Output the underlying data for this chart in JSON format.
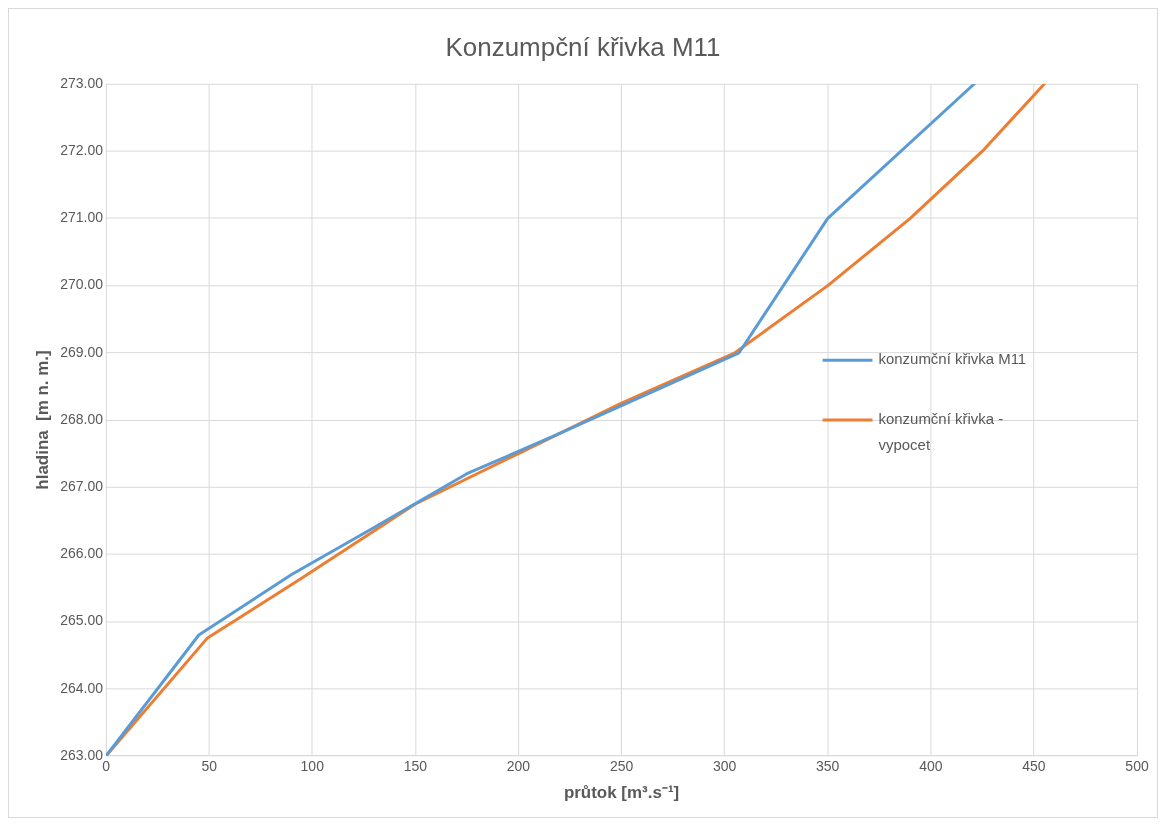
{
  "chart_data": {
    "type": "line",
    "title": "Konzumpční křivka M11",
    "xlabel": "průtok [m³.s⁻¹]",
    "ylabel": "hladina  [m n. m.]",
    "xlim": [
      0,
      500
    ],
    "xticks": [
      0,
      50,
      100,
      150,
      200,
      250,
      300,
      350,
      400,
      450,
      500
    ],
    "ylim": [
      263,
      273
    ],
    "yticks": [
      {
        "value": 263,
        "label": "263.00"
      },
      {
        "value": 264,
        "label": "264.00"
      },
      {
        "value": 265,
        "label": "265.00"
      },
      {
        "value": 266,
        "label": "266.00"
      },
      {
        "value": 267,
        "label": "267.00"
      },
      {
        "value": 268,
        "label": "268.00"
      },
      {
        "value": 269,
        "label": "269.00"
      },
      {
        "value": 270,
        "label": "270.00"
      },
      {
        "value": 271,
        "label": "271.00"
      },
      {
        "value": 272,
        "label": "272.00"
      },
      {
        "value": 273,
        "label": "273.00"
      }
    ],
    "grid": true,
    "legend": "right",
    "marker": "none",
    "line_style": "solid",
    "series": [
      {
        "name": "konzumční křivka M11",
        "color": "#5b9bd5",
        "x": [
          0,
          45,
          90,
          130,
          175,
          220,
          307,
          350,
          421
        ],
        "values": [
          263,
          264.8,
          265.7,
          266.4,
          267.2,
          267.8,
          269,
          271,
          273
        ]
      },
      {
        "name": "konzumční křivka - vypocet",
        "color": "#ed7d31",
        "x": [
          0,
          49,
          95,
          150,
          200,
          250,
          305,
          350,
          390,
          425,
          455
        ],
        "values": [
          263,
          264.75,
          265.65,
          266.75,
          267.5,
          268.25,
          269,
          270,
          271,
          272,
          273
        ]
      }
    ]
  }
}
